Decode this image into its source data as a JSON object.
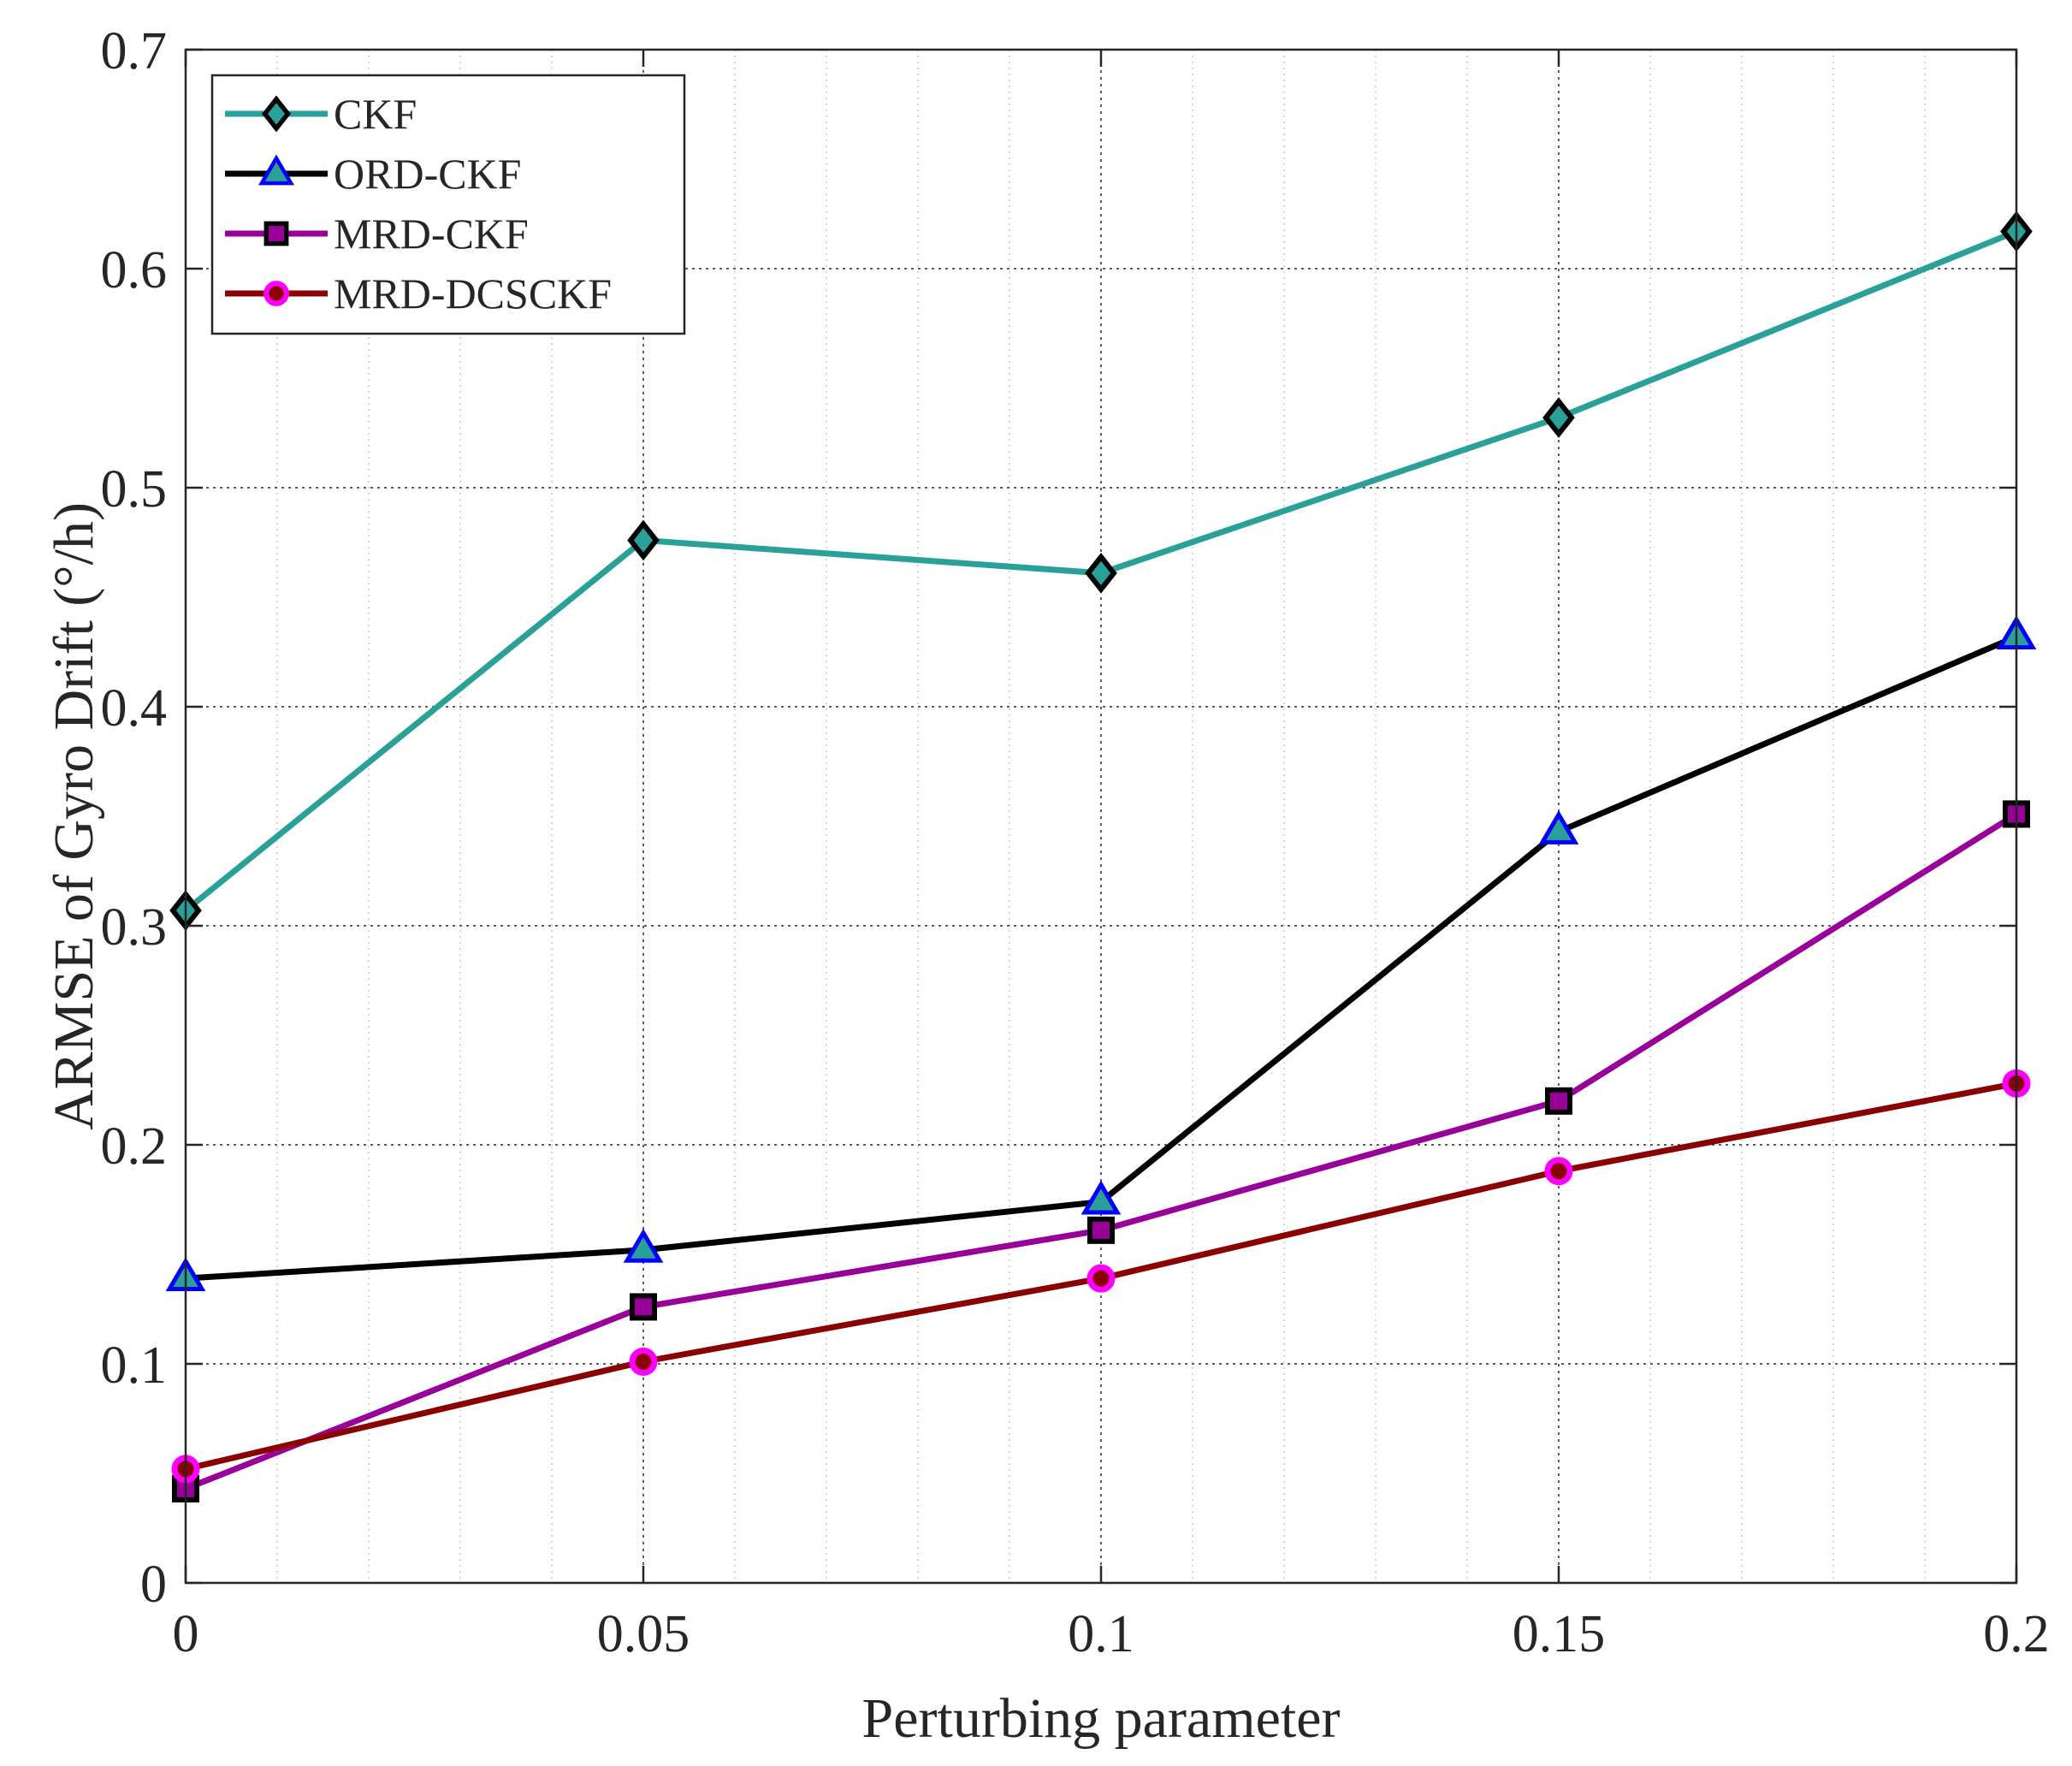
{
  "chart_data": {
    "type": "line",
    "title": "",
    "xlabel": "Perturbing parameter",
    "ylabel": "ARMSE of Gyro Drift (°/h)",
    "x": [
      0,
      0.05,
      0.1,
      0.15,
      0.2
    ],
    "xlim": [
      0,
      0.2
    ],
    "ylim": [
      0,
      0.7
    ],
    "xticks": [
      0,
      0.05,
      0.1,
      0.15,
      0.2
    ],
    "xtick_labels": [
      "0",
      "0.05",
      "0.1",
      "0.15",
      "0.2"
    ],
    "yticks": [
      0,
      0.1,
      0.2,
      0.3,
      0.4,
      0.5,
      0.6,
      0.7
    ],
    "ytick_labels": [
      "0",
      "0.1",
      "0.2",
      "0.3",
      "0.4",
      "0.5",
      "0.6",
      "0.7"
    ],
    "x_minor_step": 0.01,
    "grid": true,
    "minor_grid_x": true,
    "legend_position": "top-left",
    "series": [
      {
        "name": "CKF",
        "marker": "diamond",
        "color": "#2aa198",
        "marker_face": "#2aa198",
        "marker_edge": "#000000",
        "values": [
          0.307,
          0.476,
          0.461,
          0.532,
          0.617
        ]
      },
      {
        "name": "ORD-CKF",
        "marker": "triangle",
        "color": "#000000",
        "marker_face": "#2aa198",
        "marker_edge": "#0000ff",
        "values": [
          0.139,
          0.152,
          0.174,
          0.343,
          0.432
        ]
      },
      {
        "name": "MRD-CKF",
        "marker": "square",
        "color": "#990099",
        "marker_face": "#990099",
        "marker_edge": "#000000",
        "values": [
          0.043,
          0.126,
          0.161,
          0.22,
          0.351
        ]
      },
      {
        "name": "MRD-DCSCKF",
        "marker": "circle",
        "color": "#8b0000",
        "marker_face": "#8b0000",
        "marker_edge": "#ff00ff",
        "values": [
          0.052,
          0.101,
          0.139,
          0.188,
          0.228
        ]
      }
    ]
  }
}
